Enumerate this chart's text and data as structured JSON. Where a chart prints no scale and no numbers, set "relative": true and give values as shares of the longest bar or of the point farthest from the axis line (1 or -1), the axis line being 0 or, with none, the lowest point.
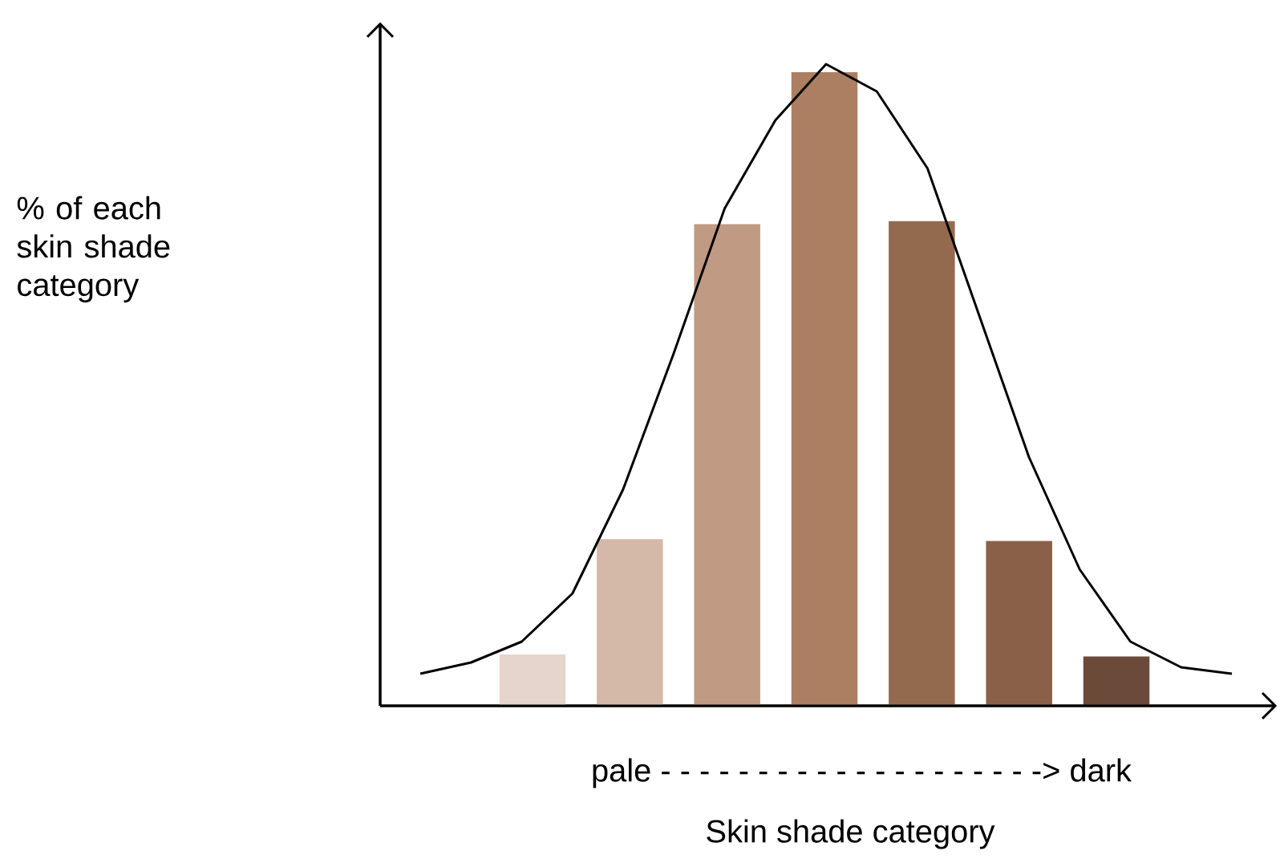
{
  "chart_data": [
    {
      "type": "bar",
      "relative": true,
      "categories": [
        null,
        null,
        null,
        null,
        null,
        null,
        null
      ],
      "colors": [
        "#e6d5cc",
        "#d4b8a8",
        "#c09a82",
        "#ac7f62",
        "#946a4f",
        "#8a6148",
        "#6b4a3a"
      ],
      "values": [
        0.081,
        0.263,
        0.76,
        1,
        0.765,
        0.26,
        0.078
      ],
      "xlabel": "Skin shade category",
      "ylabel": "% of each skin shade category",
      "annotations": [
        "pale - - - - - - - - - - - - - - - - - - - -> dark"
      ]
    },
    {
      "type": "line",
      "relative": true,
      "color": "#000000",
      "line_style": "solid",
      "marker": "none",
      "categories": [
        null,
        null,
        null,
        null,
        null,
        null,
        null,
        null,
        null,
        null,
        null,
        null,
        null,
        null,
        null,
        null,
        null
      ],
      "values": [
        0.05,
        0.0675,
        0.1,
        0.175,
        0.3375,
        0.55,
        0.775,
        0.9125,
        1,
        0.9575,
        0.8375,
        0.6125,
        0.3875,
        0.2125,
        0.1,
        0.06,
        0.05
      ]
    }
  ]
}
